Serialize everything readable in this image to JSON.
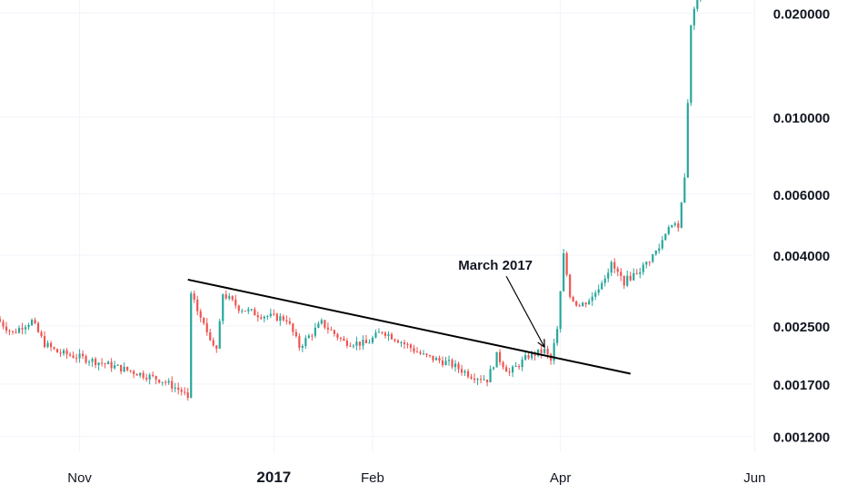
{
  "chart_data": {
    "type": "candlestick",
    "y_scale": "log",
    "ylim": [
      0.00108,
      0.0218
    ],
    "xlim": [
      "2016-10-07",
      "2017-06-30"
    ],
    "grid": true,
    "x_ticks": [
      {
        "date": "2016-11-01",
        "label": "Nov",
        "bold": false
      },
      {
        "date": "2017-01-01",
        "label": "2017",
        "bold": true
      },
      {
        "date": "2017-02-01",
        "label": "Feb",
        "bold": false
      },
      {
        "date": "2017-04-01",
        "label": "Apr",
        "bold": false
      },
      {
        "date": "2017-06-01",
        "label": "Jun",
        "bold": false
      }
    ],
    "y_ticks": [
      {
        "value": 0.0012,
        "label": "0.001200"
      },
      {
        "value": 0.0017,
        "label": "0.001700"
      },
      {
        "value": 0.0025,
        "label": "0.002500"
      },
      {
        "value": 0.004,
        "label": "0.004000"
      },
      {
        "value": 0.006,
        "label": "0.006000"
      },
      {
        "value": 0.01,
        "label": "0.010000"
      },
      {
        "value": 0.02,
        "label": "0.020000"
      }
    ],
    "anchors": [
      [
        "2016-10-07",
        0.00262
      ],
      [
        "2016-10-12",
        0.00238
      ],
      [
        "2016-10-15",
        0.0025
      ],
      [
        "2016-10-18",
        0.00258
      ],
      [
        "2016-10-22",
        0.00222
      ],
      [
        "2016-10-26",
        0.0021
      ],
      [
        "2016-11-03",
        0.00202
      ],
      [
        "2016-11-12",
        0.00192
      ],
      [
        "2016-11-20",
        0.00183
      ],
      [
        "2016-11-28",
        0.00174
      ],
      [
        "2016-12-04",
        0.00162
      ],
      [
        "2016-12-06",
        0.00155
      ],
      [
        "2016-12-07",
        0.00305
      ],
      [
        "2016-12-12",
        0.0024
      ],
      [
        "2016-12-15",
        0.00215
      ],
      [
        "2016-12-17",
        0.0031
      ],
      [
        "2016-12-22",
        0.00282
      ],
      [
        "2016-12-28",
        0.0027
      ],
      [
        "2017-01-02",
        0.00265
      ],
      [
        "2017-01-06",
        0.00262
      ],
      [
        "2017-01-10",
        0.00218
      ],
      [
        "2017-01-17",
        0.00255
      ],
      [
        "2017-01-24",
        0.00225
      ],
      [
        "2017-01-31",
        0.00222
      ],
      [
        "2017-02-05",
        0.00242
      ],
      [
        "2017-02-10",
        0.00228
      ],
      [
        "2017-02-18",
        0.00205
      ],
      [
        "2017-02-26",
        0.00195
      ],
      [
        "2017-03-05",
        0.0018
      ],
      [
        "2017-03-10",
        0.00175
      ],
      [
        "2017-03-13",
        0.00205
      ],
      [
        "2017-03-17",
        0.00183
      ],
      [
        "2017-03-23",
        0.00205
      ],
      [
        "2017-03-28",
        0.00212
      ],
      [
        "2017-03-30",
        0.00198
      ],
      [
        "2017-04-01",
        0.00245
      ],
      [
        "2017-04-03",
        0.00405
      ],
      [
        "2017-04-05",
        0.00305
      ],
      [
        "2017-04-08",
        0.00285
      ],
      [
        "2017-04-12",
        0.00302
      ],
      [
        "2017-04-18",
        0.00375
      ],
      [
        "2017-04-22",
        0.00335
      ],
      [
        "2017-04-28",
        0.0037
      ],
      [
        "2017-05-03",
        0.0042
      ],
      [
        "2017-05-06",
        0.0049
      ],
      [
        "2017-05-09",
        0.0048
      ],
      [
        "2017-05-11",
        0.0067
      ],
      [
        "2017-05-12",
        0.011
      ],
      [
        "2017-05-13",
        0.0185
      ],
      [
        "2017-05-15",
        0.0225
      ]
    ],
    "trendline": {
      "start": [
        "2016-12-05",
        0.0034
      ],
      "end": [
        "2017-04-23",
        0.00182
      ]
    },
    "annotation": {
      "text": "March 2017",
      "date": "2017-03-27",
      "value": 0.00212
    },
    "colors": {
      "up": "#26a69a",
      "down": "#ef5350",
      "grid": "#f0f3fa",
      "text": "#131722",
      "trendline": "#000000"
    }
  }
}
